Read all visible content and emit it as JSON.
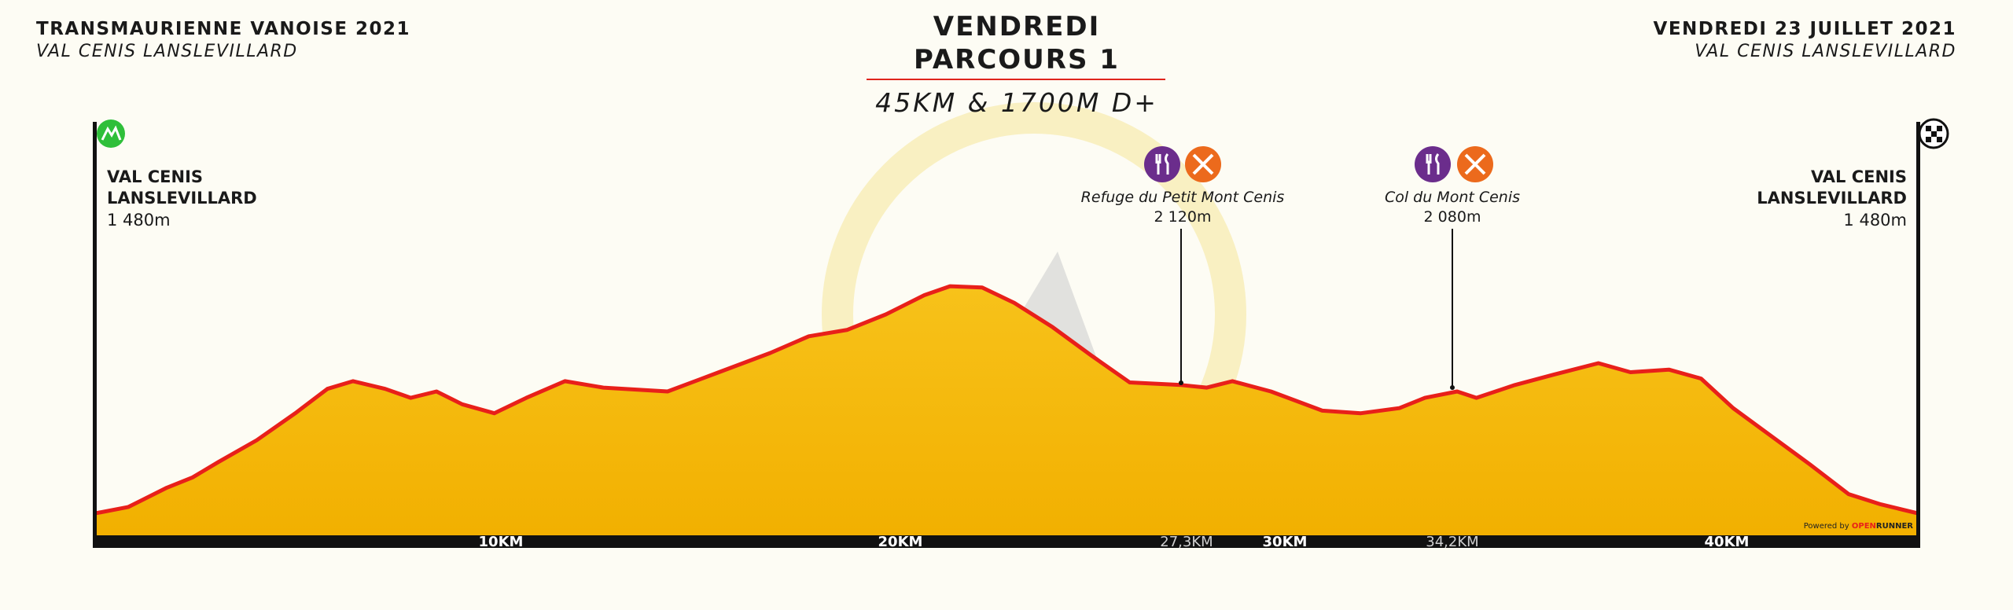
{
  "header": {
    "left_title": "TRANSMAURIENNE VANOISE 2021",
    "left_subtitle": "VAL CENIS LANSLEVILLARD",
    "center_title": "VENDREDI",
    "center_subtitle": "PARCOURS 1",
    "distance": "45KM & 1700M D+",
    "right_title": "VENDREDI 23 JUILLET 2021",
    "right_subtitle": "VAL CENIS LANSLEVILLARD"
  },
  "start": {
    "name_lines": [
      "VAL CENIS",
      "LANSLEVILLARD"
    ],
    "altitude": "1 480m"
  },
  "finish": {
    "name_lines": [
      "VAL CENIS",
      "LANSLEVILLARD"
    ],
    "altitude": "1 480m"
  },
  "waypoints": [
    {
      "name": "Refuge du Petit Mont Cenis",
      "altitude": "2 120m",
      "km": "27,3KM"
    },
    {
      "name": "Col du Mont Cenis",
      "altitude": "2 080m",
      "km": "34,2KM"
    }
  ],
  "km_labels": [
    "10KM",
    "20KM",
    "30KM",
    "40KM"
  ],
  "credit": {
    "prefix": "Powered by",
    "brand_open": "OPEN",
    "brand_runner": "RUNNER"
  }
}
